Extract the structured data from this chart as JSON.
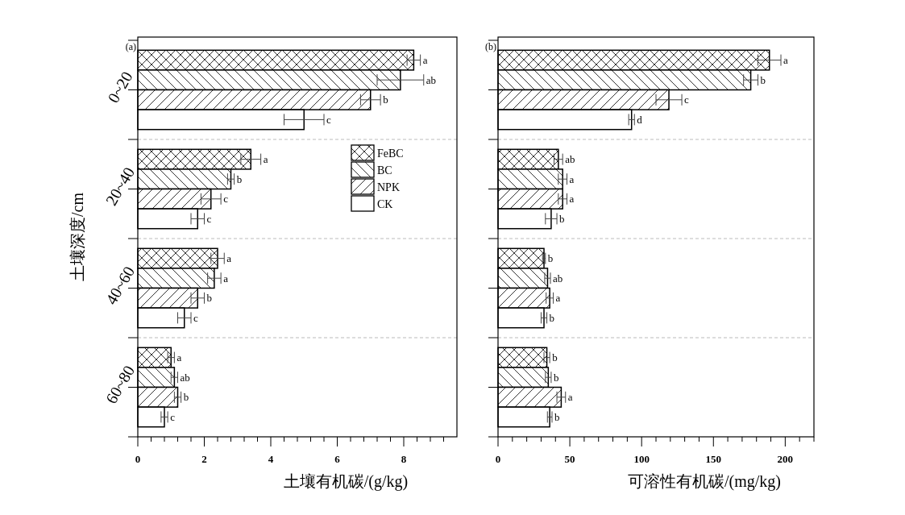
{
  "chart_data": [
    {
      "type": "bar",
      "orientation": "horizontal",
      "categories": [
        "0~20",
        "20~40",
        "40~60",
        "60~80"
      ],
      "xlabel": "土壤有机碳/(g/kg)",
      "ylabel": "土壤深度/cm",
      "annotations": [
        "(a)"
      ],
      "xlim": [
        0,
        9.6
      ],
      "xticks": [
        0,
        {
          "value": 0.4,
          "label": null
        },
        {
          "value": 0.8,
          "label": null
        },
        {
          "value": 1.2,
          "label": null
        },
        {
          "value": 1.6,
          "label": null
        },
        2,
        {
          "value": 2.4,
          "label": null
        },
        {
          "value": 2.8,
          "label": null
        },
        {
          "value": 3.2,
          "label": null
        },
        {
          "value": 3.6,
          "label": null
        },
        4,
        {
          "value": 4.4,
          "label": null
        },
        {
          "value": 4.8,
          "label": null
        },
        {
          "value": 5.2,
          "label": null
        },
        {
          "value": 5.6,
          "label": null
        },
        6,
        {
          "value": 6.4,
          "label": null
        },
        {
          "value": 6.8,
          "label": null
        },
        {
          "value": 7.2,
          "label": null
        },
        {
          "value": 7.6,
          "label": null
        },
        8,
        {
          "value": 8.4,
          "label": null
        },
        {
          "value": 8.8,
          "label": null
        },
        {
          "value": 9.2,
          "label": null
        }
      ],
      "grid": "y",
      "legend": "top right",
      "series": [
        {
          "name": "FeBC",
          "color": "#000000",
          "values": [
            8.3,
            3.4,
            2.4,
            1.0
          ],
          "errors": [
            0.2,
            0.3,
            0.2,
            0.1
          ],
          "value_labels": [
            "a",
            "a",
            "a",
            "a"
          ]
        },
        {
          "name": "BC",
          "color": "#000000",
          "values": [
            7.9,
            2.8,
            2.3,
            1.1
          ],
          "errors": [
            0.7,
            0.1,
            0.2,
            0.1
          ],
          "value_labels": [
            "ab",
            "b",
            "a",
            "ab"
          ]
        },
        {
          "name": "NPK",
          "color": "#000000",
          "values": [
            7.0,
            2.2,
            1.8,
            1.2
          ],
          "errors": [
            0.3,
            0.3,
            0.2,
            0.1
          ],
          "value_labels": [
            "b",
            "c",
            "b",
            "b"
          ]
        },
        {
          "name": "CK",
          "color": "#000000",
          "values": [
            5.0,
            1.8,
            1.4,
            0.8
          ],
          "errors": [
            0.6,
            0.2,
            0.2,
            0.1
          ],
          "value_labels": [
            "c",
            "c",
            "c",
            "c"
          ]
        }
      ]
    },
    {
      "type": "bar",
      "orientation": "horizontal",
      "categories": [
        null,
        null,
        null,
        null
      ],
      "xlabel": "可溶性有机碳/(mg/kg)",
      "annotations": [
        "(b)"
      ],
      "xlim": [
        0,
        220
      ],
      "xticks": [
        0,
        {
          "value": 10,
          "label": null
        },
        {
          "value": 20,
          "label": null
        },
        {
          "value": 30,
          "label": null
        },
        {
          "value": 40,
          "label": null
        },
        50,
        {
          "value": 60,
          "label": null
        },
        {
          "value": 70,
          "label": null
        },
        {
          "value": 80,
          "label": null
        },
        {
          "value": 90,
          "label": null
        },
        100,
        {
          "value": 110,
          "label": null
        },
        {
          "value": 120,
          "label": null
        },
        {
          "value": 130,
          "label": null
        },
        {
          "value": 140,
          "label": null
        },
        150,
        {
          "value": 160,
          "label": null
        },
        {
          "value": 170,
          "label": null
        },
        {
          "value": 180,
          "label": null
        },
        {
          "value": 190,
          "label": null
        },
        200,
        {
          "value": 210,
          "label": null
        },
        {
          "value": 220,
          "label": null
        }
      ],
      "grid": "y",
      "series": [
        {
          "color": "#000000",
          "values": [
            189,
            42,
            32,
            34
          ],
          "errors": [
            8,
            3,
            1,
            2
          ],
          "value_labels": [
            "a",
            "ab",
            "b",
            "b"
          ]
        },
        {
          "color": "#000000",
          "values": [
            176,
            45,
            34.5,
            35
          ],
          "errors": [
            5,
            3,
            2,
            2
          ],
          "value_labels": [
            "b",
            "a",
            "ab",
            "b"
          ]
        },
        {
          "color": "#000000",
          "values": [
            119,
            45,
            36,
            44
          ],
          "errors": [
            9,
            3,
            2.5,
            3
          ],
          "value_labels": [
            "c",
            "a",
            "a",
            "a"
          ]
        },
        {
          "color": "#000000",
          "values": [
            93,
            37,
            32,
            36
          ],
          "errors": [
            2,
            4,
            2,
            1.6
          ],
          "value_labels": [
            "d",
            "b",
            "b",
            "b"
          ]
        }
      ]
    }
  ]
}
